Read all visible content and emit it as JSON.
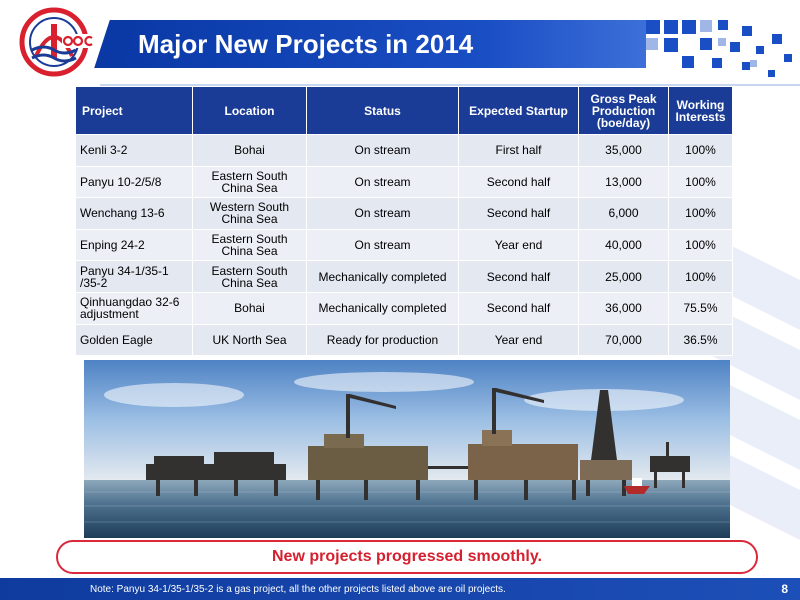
{
  "header": {
    "title": "Major New Projects in 2014"
  },
  "table": {
    "columns": [
      "Project",
      "Location",
      "Status",
      "Expected Startup",
      "Gross Peak Production (boe/day)",
      "Working Interests"
    ],
    "rows": [
      [
        "Kenli 3-2",
        "Bohai",
        "On stream",
        "First half",
        "35,000",
        "100%"
      ],
      [
        "Panyu 10-2/5/8",
        "Eastern South China Sea",
        "On stream",
        "Second half",
        "13,000",
        "100%"
      ],
      [
        "Wenchang 13-6",
        "Western South China Sea",
        "On stream",
        "Second half",
        "6,000",
        "100%"
      ],
      [
        "Enping 24-2",
        "Eastern South China Sea",
        "On stream",
        "Year end",
        "40,000",
        "100%"
      ],
      [
        "Panyu 34-1/35-1 /35-2",
        "Eastern South China Sea",
        "Mechanically completed",
        "Second half",
        "25,000",
        "100%"
      ],
      [
        "Qinhuangdao 32-6 adjustment",
        "Bohai",
        "Mechanically completed",
        "Second half",
        "36,000",
        "75.5%"
      ],
      [
        "Golden Eagle",
        "UK North Sea",
        "Ready for production",
        "Year end",
        "70,000",
        "36.5%"
      ]
    ]
  },
  "banner": {
    "text": "New projects progressed smoothly."
  },
  "footer": {
    "note": "Note: Panyu 34-1/35-1/35-2 is a gas project, all the other projects listed above are oil projects.",
    "page_number": "8"
  },
  "colors": {
    "brand_blue": "#0a39a6",
    "table_header": "#1b3c96",
    "banner_red": "#d4202f",
    "logo_red": "#d9202f"
  },
  "icons": {
    "logo": "cnooc-logo",
    "photo": "offshore-platforms-photo"
  }
}
